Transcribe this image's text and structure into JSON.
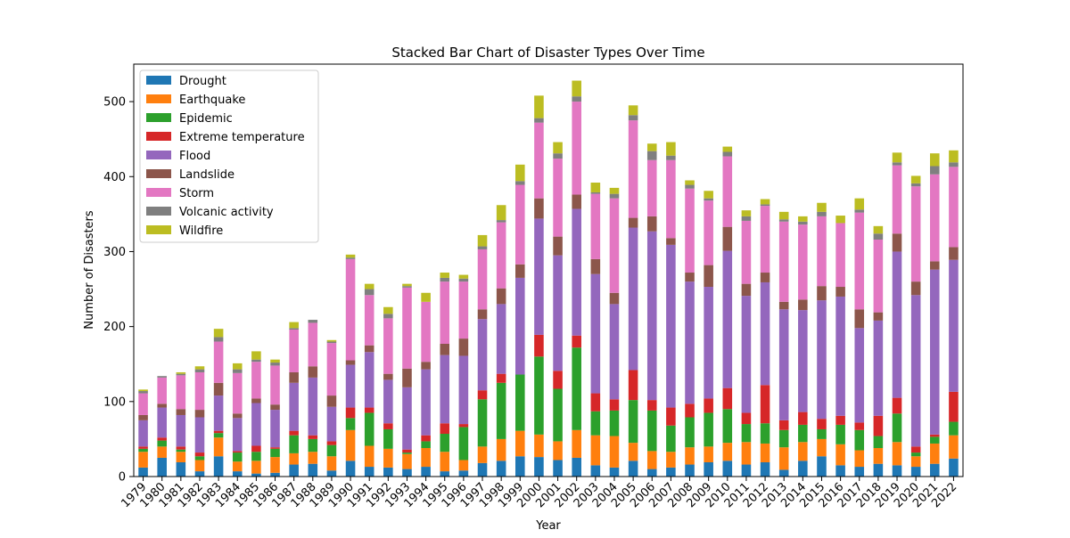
{
  "chart_data": {
    "type": "bar",
    "stacked": true,
    "title": "Stacked Bar Chart of Disaster Types Over Time",
    "xlabel": "Year",
    "ylabel": "Number of Disasters",
    "ylim": [
      0,
      550
    ],
    "yticks": [
      0,
      100,
      200,
      300,
      400,
      500
    ],
    "grid": false,
    "legend_position": "top-left",
    "categories": [
      "1979",
      "1980",
      "1981",
      "1982",
      "1983",
      "1984",
      "1985",
      "1986",
      "1987",
      "1988",
      "1989",
      "1990",
      "1991",
      "1992",
      "1993",
      "1994",
      "1995",
      "1996",
      "1997",
      "1998",
      "1999",
      "2000",
      "2001",
      "2002",
      "2003",
      "2004",
      "2005",
      "2006",
      "2007",
      "2008",
      "2009",
      "2010",
      "2011",
      "2012",
      "2013",
      "2014",
      "2015",
      "2016",
      "2017",
      "2018",
      "2019",
      "2020",
      "2021",
      "2022"
    ],
    "series": [
      {
        "name": "Drought",
        "color": "#1f77b4",
        "values": [
          12,
          25,
          19,
          7,
          27,
          7,
          4,
          5,
          16,
          17,
          8,
          21,
          13,
          12,
          10,
          13,
          7,
          8,
          18,
          21,
          27,
          26,
          22,
          25,
          15,
          12,
          21,
          10,
          12,
          16,
          19,
          21,
          16,
          19,
          9,
          21,
          27,
          15,
          13,
          17,
          15,
          13,
          17,
          24
        ]
      },
      {
        "name": "Earthquake",
        "color": "#ff7f0e",
        "values": [
          21,
          15,
          14,
          15,
          25,
          13,
          17,
          21,
          15,
          16,
          19,
          41,
          28,
          25,
          20,
          25,
          26,
          14,
          22,
          29,
          34,
          30,
          25,
          37,
          40,
          42,
          24,
          24,
          21,
          23,
          21,
          24,
          30,
          25,
          30,
          25,
          23,
          28,
          22,
          21,
          31,
          14,
          27,
          31
        ]
      },
      {
        "name": "Epidemic",
        "color": "#2ca02c",
        "values": [
          4,
          8,
          3,
          5,
          6,
          12,
          12,
          11,
          24,
          17,
          15,
          16,
          44,
          26,
          2,
          9,
          24,
          44,
          63,
          75,
          75,
          104,
          70,
          110,
          32,
          34,
          57,
          54,
          35,
          40,
          45,
          45,
          24,
          27,
          23,
          23,
          13,
          26,
          27,
          16,
          38,
          5,
          9,
          18
        ]
      },
      {
        "name": "Extreme temperature",
        "color": "#d62728",
        "values": [
          3,
          4,
          4,
          5,
          3,
          2,
          8,
          2,
          6,
          5,
          5,
          14,
          7,
          8,
          4,
          8,
          14,
          4,
          12,
          12,
          0,
          29,
          24,
          16,
          24,
          15,
          40,
          14,
          24,
          18,
          19,
          28,
          15,
          51,
          13,
          17,
          14,
          12,
          10,
          27,
          21,
          8,
          3,
          40
        ]
      },
      {
        "name": "Flood",
        "color": "#9467bd",
        "values": [
          35,
          40,
          42,
          47,
          47,
          44,
          57,
          50,
          64,
          77,
          46,
          57,
          74,
          58,
          83,
          88,
          91,
          91,
          95,
          93,
          129,
          155,
          154,
          169,
          159,
          127,
          190,
          225,
          217,
          163,
          149,
          183,
          156,
          137,
          148,
          136,
          158,
          159,
          126,
          127,
          195,
          202,
          220,
          176
        ]
      },
      {
        "name": "Landslide",
        "color": "#8c564b",
        "values": [
          7,
          5,
          8,
          10,
          17,
          6,
          6,
          7,
          14,
          15,
          15,
          6,
          9,
          8,
          25,
          10,
          15,
          23,
          13,
          21,
          18,
          27,
          25,
          19,
          20,
          15,
          13,
          20,
          9,
          12,
          29,
          32,
          16,
          13,
          10,
          14,
          19,
          13,
          25,
          11,
          24,
          18,
          11,
          17
        ]
      },
      {
        "name": "Storm",
        "color": "#e377c2",
        "values": [
          29,
          35,
          45,
          50,
          55,
          54,
          49,
          52,
          57,
          58,
          70,
          135,
          67,
          74,
          108,
          80,
          83,
          76,
          80,
          88,
          106,
          101,
          104,
          124,
          87,
          126,
          130,
          75,
          104,
          112,
          86,
          94,
          84,
          89,
          107,
          100,
          93,
          85,
          129,
          97,
          91,
          127,
          116,
          107
        ]
      },
      {
        "name": "Volcanic activity",
        "color": "#7f7f7f",
        "values": [
          3,
          2,
          2,
          4,
          6,
          5,
          3,
          4,
          2,
          4,
          2,
          2,
          8,
          6,
          2,
          0,
          5,
          4,
          4,
          3,
          5,
          6,
          7,
          7,
          2,
          6,
          7,
          12,
          6,
          5,
          3,
          6,
          6,
          2,
          3,
          4,
          6,
          0,
          4,
          8,
          4,
          4,
          11,
          6
        ]
      },
      {
        "name": "Wildfire",
        "color": "#bcbd22",
        "values": [
          2,
          0,
          2,
          4,
          11,
          8,
          11,
          4,
          8,
          0,
          2,
          4,
          7,
          9,
          3,
          12,
          7,
          5,
          15,
          20,
          22,
          30,
          15,
          21,
          13,
          8,
          13,
          10,
          18,
          6,
          10,
          7,
          8,
          7,
          10,
          7,
          12,
          10,
          15,
          10,
          13,
          10,
          17,
          16
        ]
      }
    ]
  }
}
